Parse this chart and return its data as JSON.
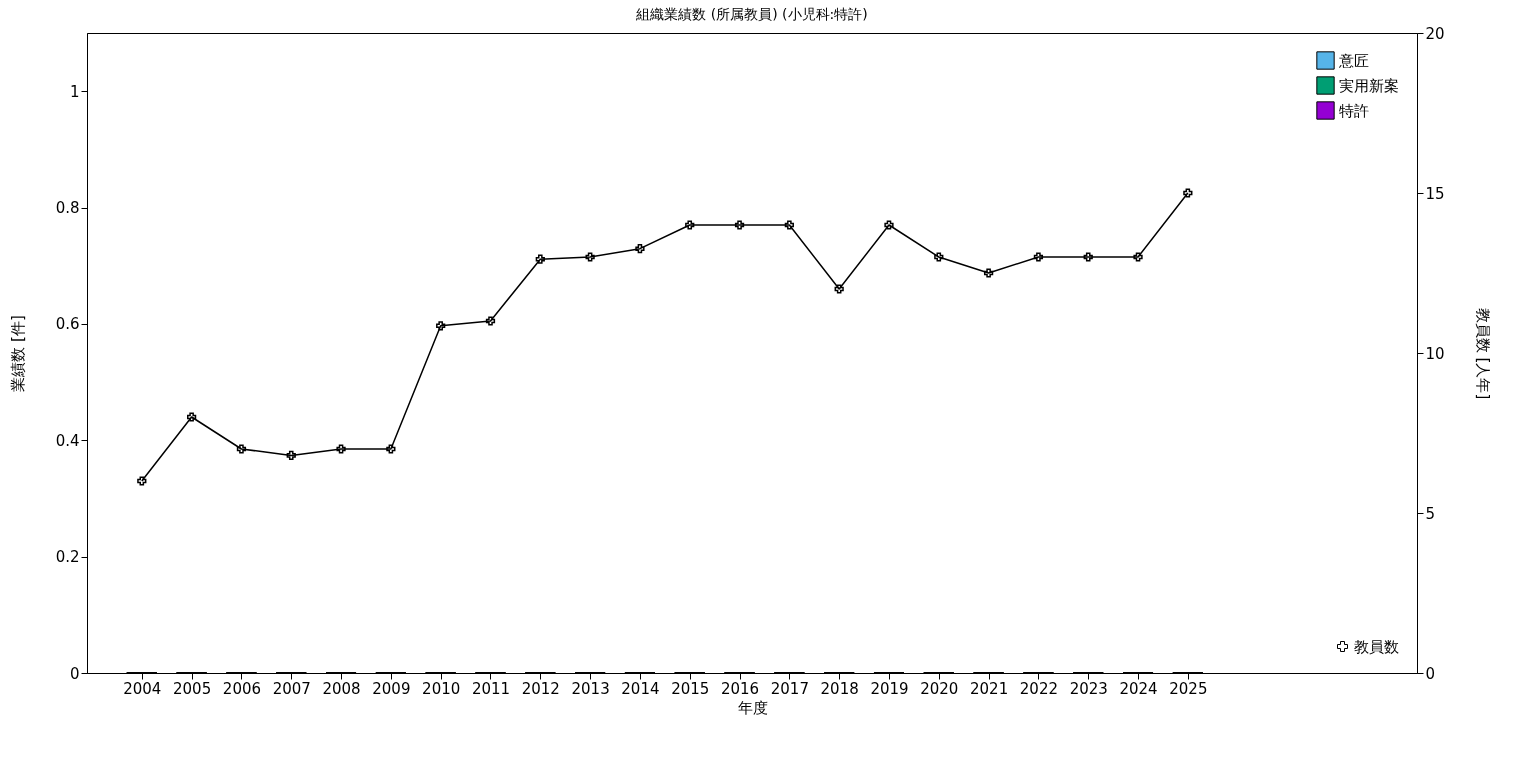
{
  "chart_data": {
    "type": "bar",
    "title": "組織業績数 (所属教員) (小児科:特許)",
    "xlabel": "年度",
    "ylabel": "業績数 [件]",
    "y2label": "教員数 [人年]",
    "x": [
      2004,
      2005,
      2006,
      2007,
      2008,
      2009,
      2010,
      2011,
      2012,
      2013,
      2014,
      2015,
      2016,
      2017,
      2018,
      2019,
      2020,
      2021,
      2022,
      2023,
      2024,
      2025
    ],
    "xlim": [
      2003,
      2029.5
    ],
    "xticks": [
      2004,
      2005,
      2006,
      2007,
      2008,
      2009,
      2010,
      2011,
      2012,
      2013,
      2014,
      2015,
      2016,
      2017,
      2018,
      2019,
      2020,
      2021,
      2022,
      2023,
      2024,
      2025
    ],
    "stacked": true,
    "series": [
      {
        "name": "意匠",
        "color": "#56b4e9",
        "values": [
          0,
          0,
          0,
          0,
          0,
          0,
          0,
          0,
          0,
          0,
          0,
          0,
          0,
          0,
          0,
          0,
          0,
          0,
          0,
          0,
          0,
          0
        ]
      },
      {
        "name": "実用新案",
        "color": "#009e73",
        "values": [
          0,
          0,
          0,
          0,
          0,
          0,
          0,
          0,
          0,
          0,
          0,
          0,
          0,
          0,
          0,
          0,
          0,
          0,
          0,
          0,
          0,
          0
        ]
      },
      {
        "name": "特許",
        "color": "#9400d3",
        "values": [
          0,
          0,
          0,
          0,
          0,
          0,
          0,
          0,
          0,
          0,
          0,
          0,
          0,
          0,
          0,
          0,
          0,
          0,
          0,
          0,
          0,
          0
        ]
      },
      {
        "name": "教員数",
        "type": "line",
        "axis": "y2",
        "color": "#000000",
        "marker": "cross",
        "values": [
          6,
          8,
          7,
          6.8,
          7,
          7,
          10.85,
          11,
          12.93,
          13,
          13.26,
          14,
          14,
          14,
          12,
          14,
          13,
          12.5,
          13,
          13,
          13,
          15
        ]
      }
    ],
    "ylim": [
      0,
      1.1
    ],
    "yticks": [
      0,
      0.2,
      0.4,
      0.6,
      0.8,
      1
    ],
    "y2lim": [
      0,
      20
    ],
    "y2ticks": [
      0,
      5,
      10,
      15,
      20
    ],
    "legend": "top right",
    "grid": false
  }
}
